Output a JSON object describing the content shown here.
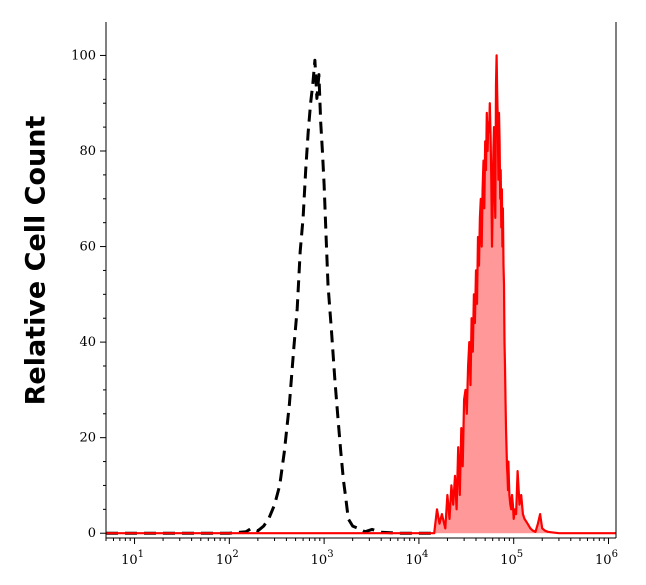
{
  "chart_data": {
    "type": "area",
    "title": "",
    "xlabel": "",
    "ylabel": "Relative Cell Count",
    "x_scale": "log",
    "xlim": [
      5,
      1200000
    ],
    "ylim": [
      -1,
      107
    ],
    "grid": false,
    "x_ticks": [
      {
        "value": 10,
        "base": "10",
        "exp": "1"
      },
      {
        "value": 100,
        "base": "10",
        "exp": "2"
      },
      {
        "value": 1000,
        "base": "10",
        "exp": "3"
      },
      {
        "value": 10000,
        "base": "10",
        "exp": "4"
      },
      {
        "value": 100000,
        "base": "10",
        "exp": "5"
      },
      {
        "value": 1000000,
        "base": "10",
        "exp": "6"
      }
    ],
    "y_ticks": [
      {
        "value": 0,
        "label": "0"
      },
      {
        "value": 20,
        "label": "20"
      },
      {
        "value": 40,
        "label": "40"
      },
      {
        "value": 60,
        "label": "60"
      },
      {
        "value": 80,
        "label": "80"
      },
      {
        "value": 100,
        "label": "100"
      }
    ],
    "series": [
      {
        "style": "dashed",
        "color": "#000000",
        "fill": "none",
        "x": [
          5,
          100,
          150,
          170,
          200,
          230,
          260,
          300,
          340,
          380,
          430,
          480,
          520,
          560,
          600,
          640,
          680,
          720,
          760,
          800,
          840,
          880,
          920,
          960,
          1000,
          1050,
          1100,
          1200,
          1300,
          1400,
          1500,
          1600,
          1700,
          1800,
          2000,
          2300,
          2700,
          3200,
          4000,
          6000,
          15000
        ],
        "y": [
          0,
          0,
          0.3,
          1.0,
          0.5,
          1.5,
          3,
          6,
          10,
          17,
          27,
          39,
          47,
          59,
          66,
          76,
          84,
          90,
          94,
          99,
          91,
          96,
          86,
          80,
          73,
          62,
          52,
          42,
          32,
          24,
          17,
          11,
          7,
          3,
          1.5,
          1.0,
          0.3,
          0.8,
          0.2,
          0,
          0
        ]
      },
      {
        "style": "solid",
        "color": "#ff0000",
        "fill": "#ff9999",
        "x": [
          5,
          100,
          300,
          1000,
          3000,
          10000,
          14500,
          15500,
          16500,
          17500,
          19000,
          20000,
          21000,
          22000,
          23000,
          24000,
          25000,
          26000,
          27000,
          28000,
          29000,
          30000,
          31000,
          32000,
          33000,
          34000,
          35000,
          36000,
          37000,
          38000,
          39000,
          40000,
          41000,
          42000,
          43000,
          44000,
          45000,
          46000,
          47000,
          48000,
          49000,
          50000,
          51000,
          52000,
          53000,
          54000,
          55000,
          56000,
          57000,
          58000,
          59000,
          60000,
          61000,
          62000,
          63000,
          64000,
          65000,
          66000,
          67000,
          68000,
          69000,
          70000,
          71000,
          72000,
          73000,
          74000,
          75000,
          76000,
          77000,
          78000,
          79000,
          80000,
          81000,
          82000,
          83000,
          84000,
          85000,
          86000,
          87000,
          88000,
          89000,
          90000,
          92000,
          94000,
          96000,
          98000,
          100000,
          103000,
          106000,
          110000,
          115000,
          120000,
          125000,
          130000,
          140000,
          150000,
          160000,
          170000,
          180000,
          190000,
          200000,
          215000,
          230000,
          250000,
          270000,
          300000,
          350000,
          1200000
        ],
        "y": [
          0,
          0,
          0,
          0,
          0,
          0,
          0,
          5,
          2,
          4,
          1,
          8,
          3,
          10,
          6,
          12,
          5,
          18,
          8,
          22,
          14,
          28,
          30,
          25,
          35,
          40,
          31,
          45,
          38,
          50,
          44,
          55,
          48,
          62,
          56,
          66,
          70,
          60,
          72,
          78,
          68,
          82,
          76,
          88,
          80,
          86,
          84,
          90,
          83,
          74,
          60,
          69,
          80,
          85,
          72,
          66,
          94,
          100,
          92,
          86,
          74,
          88,
          82,
          70,
          76,
          64,
          72,
          60,
          68,
          56,
          52,
          40,
          35,
          28,
          22,
          18,
          14,
          12,
          9,
          15,
          11,
          8,
          6,
          5,
          8,
          6,
          3,
          5,
          4,
          13,
          6,
          8,
          4,
          3,
          2,
          1,
          0.5,
          0.3,
          2,
          4,
          1,
          0.5,
          0.3,
          0.2,
          0.1,
          0,
          0,
          0
        ]
      }
    ]
  }
}
